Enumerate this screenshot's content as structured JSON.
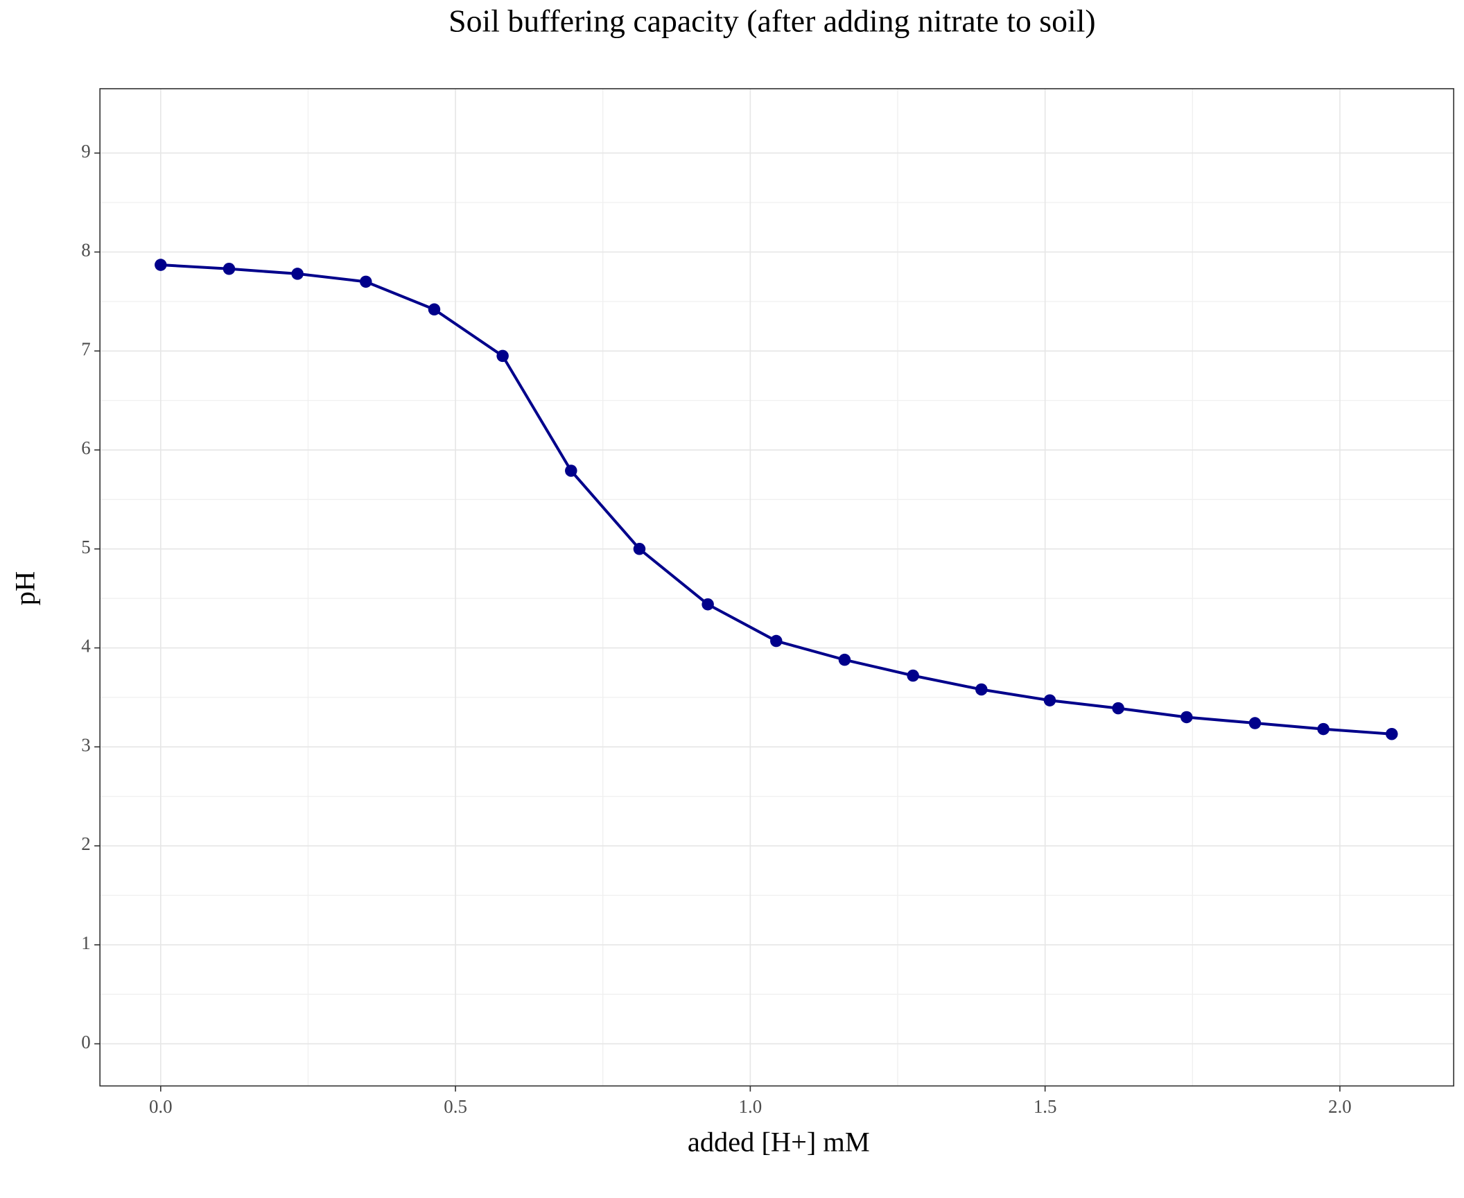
{
  "chart_data": {
    "type": "line",
    "title": "Soil buffering capacity (after adding nitrate to soil)",
    "x_label": "added [H+] mM",
    "y_label": "pH",
    "x": [
      0,
      0.116,
      0.232,
      0.348,
      0.464,
      0.58,
      0.696,
      0.812,
      0.928,
      1.044,
      1.16,
      1.276,
      1.392,
      1.508,
      1.624,
      1.74,
      1.856,
      1.972,
      2.088
    ],
    "series": [
      {
        "name": "pH",
        "color": "#00008b",
        "values": [
          7.87,
          7.83,
          7.78,
          7.7,
          7.42,
          6.95,
          5.79,
          5.0,
          4.44,
          4.07,
          3.88,
          3.72,
          3.58,
          3.47,
          3.39,
          3.3,
          3.24,
          3.18,
          3.13
        ]
      }
    ],
    "xlim": [
      -0.103,
      2.193
    ],
    "ylim": [
      -0.426,
      9.65
    ],
    "xticks": [
      {
        "value": 0,
        "label": "0.0"
      },
      0.5,
      {
        "value": 1,
        "label": "1.0"
      },
      1.5,
      {
        "value": 2,
        "label": "2.0"
      }
    ],
    "yticks": [
      0,
      1,
      2,
      3,
      4,
      5,
      6,
      7,
      8,
      9
    ],
    "grid": true
  }
}
